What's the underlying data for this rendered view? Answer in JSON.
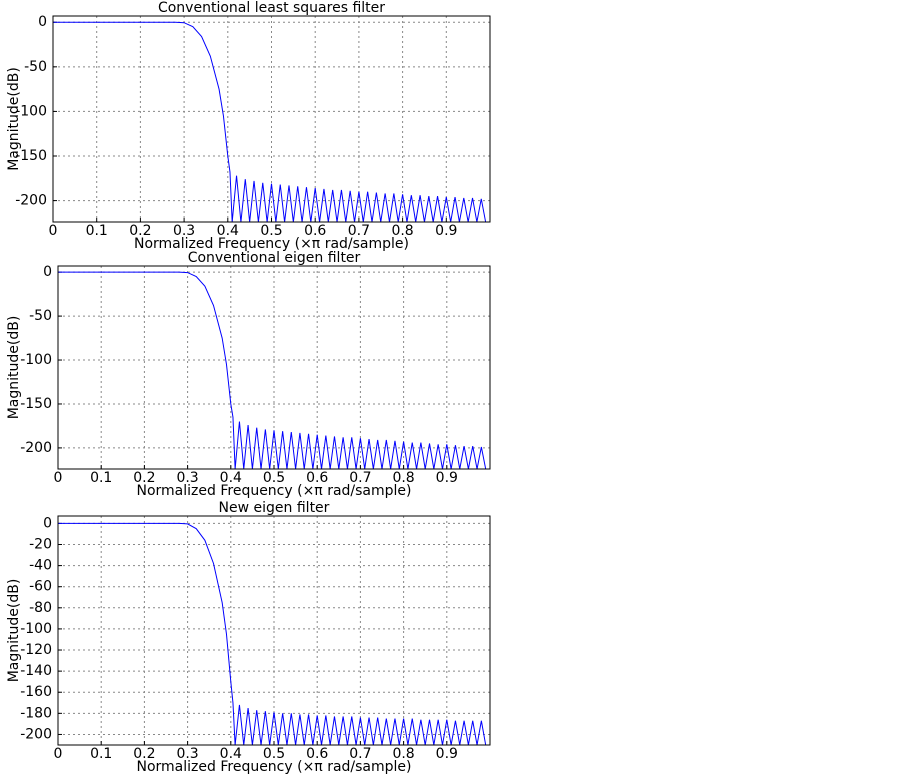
{
  "chart_data": [
    {
      "type": "line",
      "title": "Conventional least squares filter",
      "x_label": "Normalized Frequency (×π rad/sample)",
      "y_label": "Magnitude(dB)",
      "color": "#0000ff",
      "grid": true,
      "xlim": [
        0,
        1
      ],
      "ylim": [
        -224,
        7
      ],
      "xticks": [
        0,
        0.1,
        0.2,
        0.3,
        0.4,
        0.5,
        0.6,
        0.7,
        0.8,
        0.9
      ],
      "yticks": [
        0,
        -50,
        -100,
        -150,
        -200
      ],
      "x": [
        0,
        0.28,
        0.3,
        0.32,
        0.34,
        0.36,
        0.38,
        0.39,
        0.4,
        0.405,
        0.41,
        0.42,
        0.43,
        0.44,
        0.45,
        0.46,
        0.47,
        0.48,
        0.49,
        0.5,
        0.51,
        0.52,
        0.53,
        0.54,
        0.55,
        0.56,
        0.57,
        0.58,
        0.59,
        0.6,
        0.61,
        0.62,
        0.63,
        0.64,
        0.65,
        0.66,
        0.67,
        0.68,
        0.69,
        0.7,
        0.71,
        0.72,
        0.73,
        0.74,
        0.75,
        0.76,
        0.77,
        0.78,
        0.79,
        0.8,
        0.81,
        0.82,
        0.83,
        0.84,
        0.85,
        0.86,
        0.87,
        0.88,
        0.89,
        0.9,
        0.91,
        0.92,
        0.93,
        0.94,
        0.95,
        0.96,
        0.97,
        0.98,
        0.99
      ],
      "values": [
        0,
        0,
        -0.5,
        -5,
        -16,
        -38,
        -75,
        -105,
        -150,
        -168,
        -224,
        -172,
        -224,
        -176,
        -224,
        -178,
        -224,
        -180,
        -224,
        -181,
        -224,
        -182,
        -224,
        -183,
        -224,
        -184,
        -224,
        -185,
        -224,
        -186,
        -224,
        -187,
        -224,
        -188,
        -224,
        -188,
        -224,
        -189,
        -224,
        -190,
        -224,
        -190,
        -224,
        -191,
        -224,
        -192,
        -224,
        -192,
        -224,
        -193,
        -224,
        -194,
        -224,
        -194,
        -224,
        -195,
        -224,
        -195,
        -224,
        -196,
        -224,
        -196,
        -224,
        -197,
        -224,
        -197,
        -224,
        -198,
        -224
      ]
    },
    {
      "type": "line",
      "title": "Conventional eigen filter",
      "x_label": "Normalized Frequency (×π rad/sample)",
      "y_label": "Magnitude(dB)",
      "color": "#0000ff",
      "grid": true,
      "xlim": [
        0,
        1
      ],
      "ylim": [
        -224,
        7
      ],
      "xticks": [
        0,
        0.1,
        0.2,
        0.3,
        0.4,
        0.5,
        0.6,
        0.7,
        0.8,
        0.9
      ],
      "yticks": [
        0,
        -50,
        -100,
        -150,
        -200
      ],
      "x": [
        0,
        0.28,
        0.3,
        0.32,
        0.34,
        0.36,
        0.38,
        0.39,
        0.4,
        0.405,
        0.41,
        0.42,
        0.43,
        0.44,
        0.45,
        0.46,
        0.47,
        0.48,
        0.49,
        0.5,
        0.51,
        0.52,
        0.53,
        0.54,
        0.55,
        0.56,
        0.57,
        0.58,
        0.59,
        0.6,
        0.61,
        0.62,
        0.63,
        0.64,
        0.65,
        0.66,
        0.67,
        0.68,
        0.69,
        0.7,
        0.71,
        0.72,
        0.73,
        0.74,
        0.75,
        0.76,
        0.77,
        0.78,
        0.79,
        0.8,
        0.81,
        0.82,
        0.83,
        0.84,
        0.85,
        0.86,
        0.87,
        0.88,
        0.89,
        0.9,
        0.91,
        0.92,
        0.93,
        0.94,
        0.95,
        0.96,
        0.97,
        0.98,
        0.99
      ],
      "values": [
        0,
        0,
        -0.5,
        -5,
        -16,
        -38,
        -75,
        -105,
        -150,
        -165,
        -224,
        -170,
        -224,
        -174,
        -224,
        -177,
        -224,
        -179,
        -224,
        -180,
        -224,
        -181,
        -224,
        -182,
        -224,
        -183,
        -224,
        -184,
        -224,
        -185,
        -224,
        -186,
        -224,
        -187,
        -224,
        -188,
        -224,
        -188,
        -224,
        -189,
        -224,
        -190,
        -224,
        -191,
        -224,
        -191,
        -224,
        -192,
        -224,
        -193,
        -224,
        -194,
        -224,
        -194,
        -224,
        -195,
        -224,
        -196,
        -224,
        -196,
        -224,
        -197,
        -224,
        -198,
        -224,
        -198,
        -224,
        -199,
        -224
      ]
    },
    {
      "type": "line",
      "title": "New eigen filter",
      "x_label": "Normalized Frequency (×π rad/sample)",
      "y_label": "Magnitude(dB)",
      "color": "#0000ff",
      "grid": true,
      "xlim": [
        0,
        1
      ],
      "ylim": [
        -210,
        7
      ],
      "xticks": [
        0,
        0.1,
        0.2,
        0.3,
        0.4,
        0.5,
        0.6,
        0.7,
        0.8,
        0.9
      ],
      "yticks": [
        0,
        -20,
        -40,
        -60,
        -80,
        -100,
        -120,
        -140,
        -160,
        -180,
        -200
      ],
      "x": [
        0,
        0.28,
        0.3,
        0.32,
        0.34,
        0.36,
        0.38,
        0.39,
        0.4,
        0.405,
        0.41,
        0.42,
        0.43,
        0.44,
        0.45,
        0.46,
        0.47,
        0.48,
        0.49,
        0.5,
        0.51,
        0.52,
        0.53,
        0.54,
        0.55,
        0.56,
        0.57,
        0.58,
        0.59,
        0.6,
        0.61,
        0.62,
        0.63,
        0.64,
        0.65,
        0.66,
        0.67,
        0.68,
        0.69,
        0.7,
        0.71,
        0.72,
        0.73,
        0.74,
        0.75,
        0.76,
        0.77,
        0.78,
        0.79,
        0.8,
        0.81,
        0.82,
        0.83,
        0.84,
        0.85,
        0.86,
        0.87,
        0.88,
        0.89,
        0.9,
        0.91,
        0.92,
        0.93,
        0.94,
        0.95,
        0.96,
        0.97,
        0.98,
        0.99
      ],
      "values": [
        0,
        0,
        -0.5,
        -5,
        -16,
        -38,
        -75,
        -105,
        -150,
        -170,
        -210,
        -172,
        -210,
        -175,
        -210,
        -177,
        -210,
        -178,
        -210,
        -179,
        -210,
        -180,
        -210,
        -180,
        -210,
        -181,
        -210,
        -181,
        -210,
        -182,
        -210,
        -182,
        -210,
        -183,
        -210,
        -183,
        -210,
        -183,
        -210,
        -184,
        -210,
        -184,
        -210,
        -184,
        -210,
        -185,
        -210,
        -185,
        -210,
        -185,
        -210,
        -185,
        -210,
        -186,
        -210,
        -186,
        -210,
        -186,
        -210,
        -186,
        -210,
        -187,
        -210,
        -187,
        -210,
        -187,
        -210,
        -187,
        -210
      ]
    }
  ]
}
